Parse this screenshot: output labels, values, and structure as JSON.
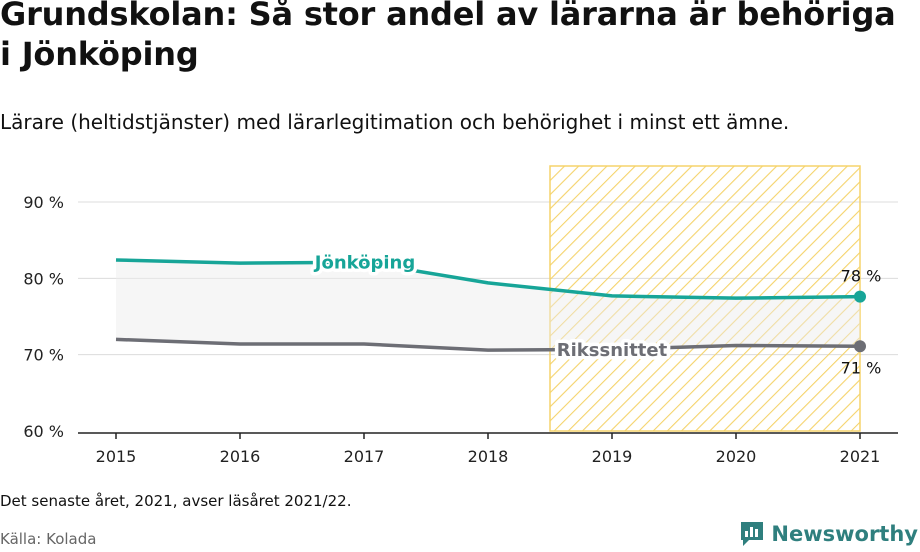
{
  "title": "Grundskolan: Så stor andel av lärarna är behöriga i Jönköping",
  "subtitle": "Lärare (heltidstjänster) med lärarlegitimation och behörighet i minst ett ämne.",
  "note": "Det senaste året, 2021, avser läsåret 2021/22.",
  "source": "Källa: Kolada",
  "brand": "Newsworthy",
  "colors": {
    "jonkoping": "#17a598",
    "riket": "#6d6e75",
    "highlight": "#f5d36b",
    "band": "#ececec"
  },
  "chart_data": {
    "type": "line",
    "x": [
      2015,
      2016,
      2017,
      2018,
      2019,
      2020,
      2021
    ],
    "xticks": [
      "2015",
      "2016",
      "2017",
      "2018",
      "2019",
      "2020",
      "2021"
    ],
    "yticks": [
      "60 %",
      "70 %",
      "80 %",
      "90 %"
    ],
    "ylim": [
      60,
      90
    ],
    "series": [
      {
        "name": "Jönköping",
        "values": [
          82.4,
          82.0,
          82.1,
          79.4,
          77.7,
          77.4,
          77.6
        ],
        "end_label": "78 %"
      },
      {
        "name": "Rikssnittet",
        "values": [
          72.0,
          71.4,
          71.4,
          70.6,
          70.7,
          71.2,
          71.1
        ],
        "end_label": "71 %"
      }
    ],
    "highlight_range": [
      2018.5,
      2021.0
    ],
    "grid": true
  }
}
